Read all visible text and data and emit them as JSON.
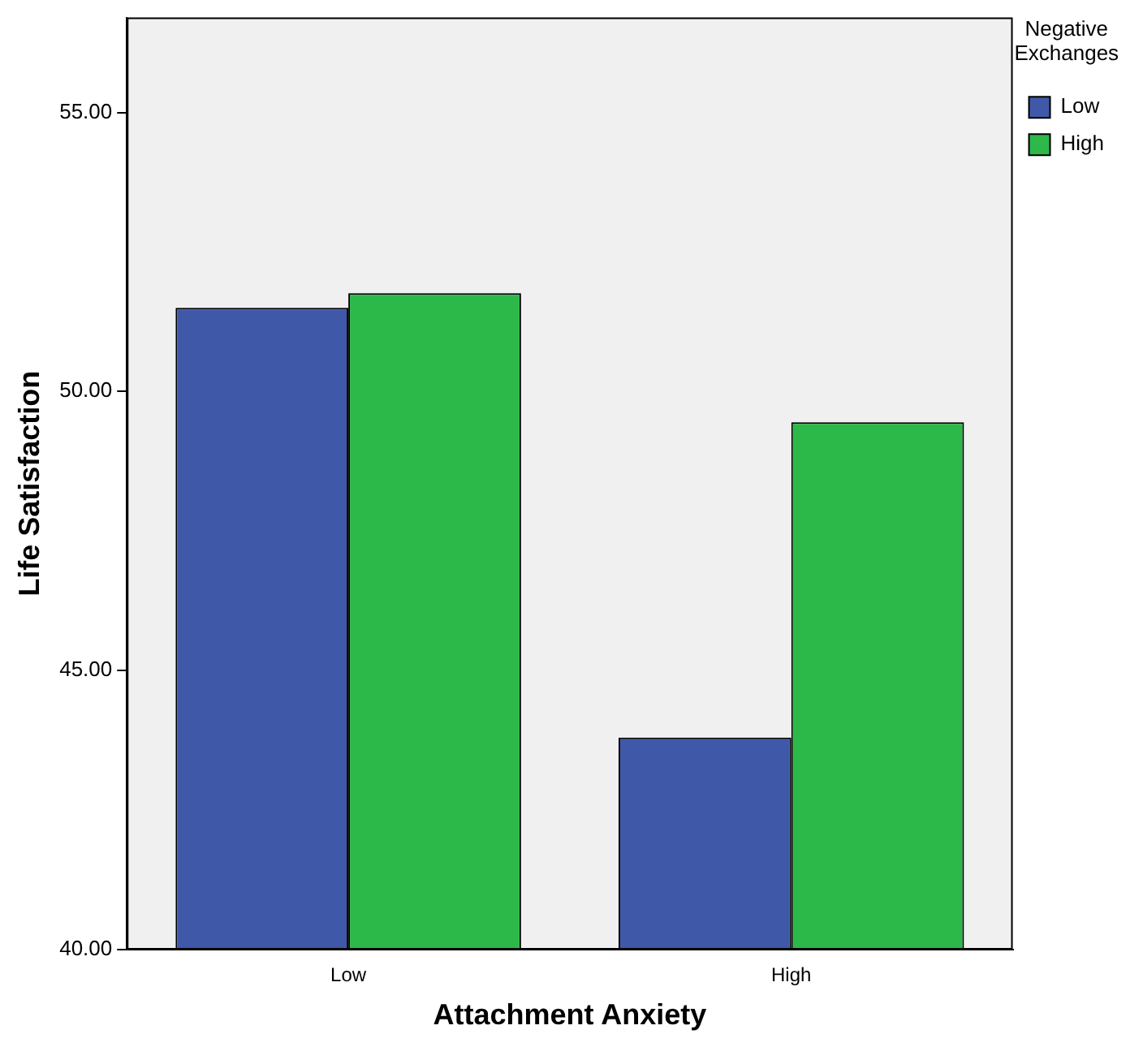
{
  "chart_data": {
    "type": "bar",
    "xlabel": "Attachment Anxiety",
    "ylabel": "Life Satisfaction",
    "legend_title": "Negative Exchanges",
    "categories": [
      "Low",
      "High"
    ],
    "series": [
      {
        "name": "Low",
        "color": "#3f58a8",
        "values": [
          51.5,
          43.8
        ]
      },
      {
        "name": "High",
        "color": "#2db84a",
        "values": [
          51.76,
          49.45
        ]
      }
    ],
    "ylim": [
      40,
      56.7
    ],
    "yticks": [
      {
        "value": 40,
        "label": "40.00"
      },
      {
        "value": 45,
        "label": "45.00"
      },
      {
        "value": 50,
        "label": "50.00"
      },
      {
        "value": 55,
        "label": "55.00"
      }
    ],
    "grid": false,
    "legend": "top right"
  }
}
